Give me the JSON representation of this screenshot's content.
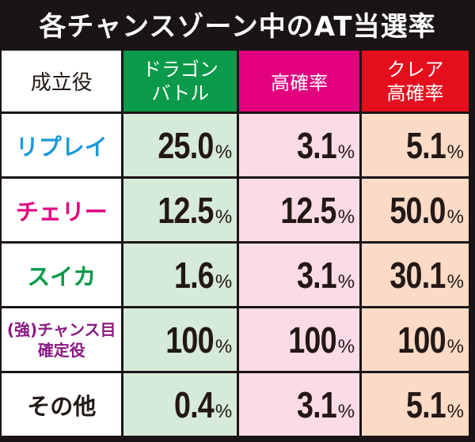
{
  "title": "各チャンスゾーン中のAT当選率",
  "header": {
    "role_label": "成立役",
    "columns": [
      {
        "line1": "ドラゴン",
        "line2": "バトル",
        "color": "#0a9a49"
      },
      {
        "line1": "高確率",
        "line2": "",
        "color": "#e2007f"
      },
      {
        "line1": "クレア",
        "line2": "高確率",
        "color": "#e50e1d"
      }
    ]
  },
  "rows": [
    {
      "label": "リプレイ",
      "label2": "",
      "label_color": "#1b9ad6",
      "values": [
        "25.0",
        "3.1",
        "5.1"
      ],
      "unit": "%"
    },
    {
      "label": "チェリー",
      "label2": "",
      "label_color": "#e2007f",
      "values": [
        "12.5",
        "12.5",
        "50.0"
      ],
      "unit": "%"
    },
    {
      "label": "スイカ",
      "label2": "",
      "label_color": "#0a9a49",
      "values": [
        "1.6",
        "3.1",
        "30.1"
      ],
      "unit": "%"
    },
    {
      "label": "(強)チャンス目",
      "label2": "確定役",
      "label_color": "#8a1a84",
      "values": [
        "100",
        "100",
        "100"
      ],
      "unit": "%"
    },
    {
      "label": "その他",
      "label2": "",
      "label_color": "#231815",
      "values": [
        "0.4",
        "3.1",
        "5.1"
      ],
      "unit": "%"
    }
  ],
  "cell_colors": {
    "dragon": "#d5ead8",
    "high": "#fadbe6",
    "clear": "#fbdac6"
  }
}
